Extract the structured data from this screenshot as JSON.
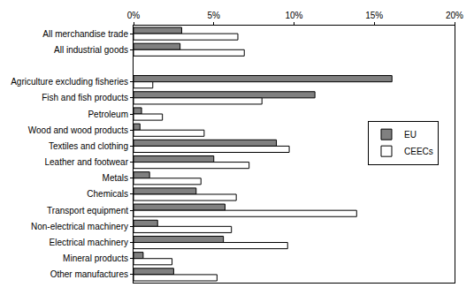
{
  "chart_data": {
    "type": "bar",
    "orientation": "horizontal",
    "categories": [
      "All merchandise trade",
      "All industrial goods",
      null,
      "Agriculture excluding fisheries",
      "Fish and fish products",
      "Petroleum",
      "Wood and wood products",
      "Textiles and clothing",
      "Leather and footwear",
      "Metals",
      "Chemicals",
      "Transport equipment",
      "Non-electrical machinery",
      "Electrical machinery",
      "Mineral products",
      "Other manufactures"
    ],
    "series": [
      {
        "name": "EU",
        "color": "#808080",
        "values": [
          3.0,
          2.9,
          null,
          16.1,
          11.3,
          0.5,
          0.4,
          8.9,
          5.0,
          1.0,
          3.9,
          5.7,
          1.5,
          5.6,
          0.6,
          2.5
        ]
      },
      {
        "name": "CEECs",
        "color": "#ffffff",
        "values": [
          6.5,
          6.9,
          null,
          1.2,
          8.0,
          1.8,
          4.4,
          9.7,
          7.2,
          4.2,
          6.4,
          13.9,
          6.1,
          9.6,
          2.4,
          5.2
        ]
      }
    ],
    "xlim": [
      0,
      20
    ],
    "xticks": [
      {
        "value": 0,
        "label": "0%"
      },
      {
        "value": 5,
        "label": "5%"
      },
      {
        "value": 10,
        "label": "10%"
      },
      {
        "value": 15,
        "label": "15%"
      },
      {
        "value": 20,
        "label": "20%"
      }
    ],
    "grid": false,
    "legend": "right"
  }
}
